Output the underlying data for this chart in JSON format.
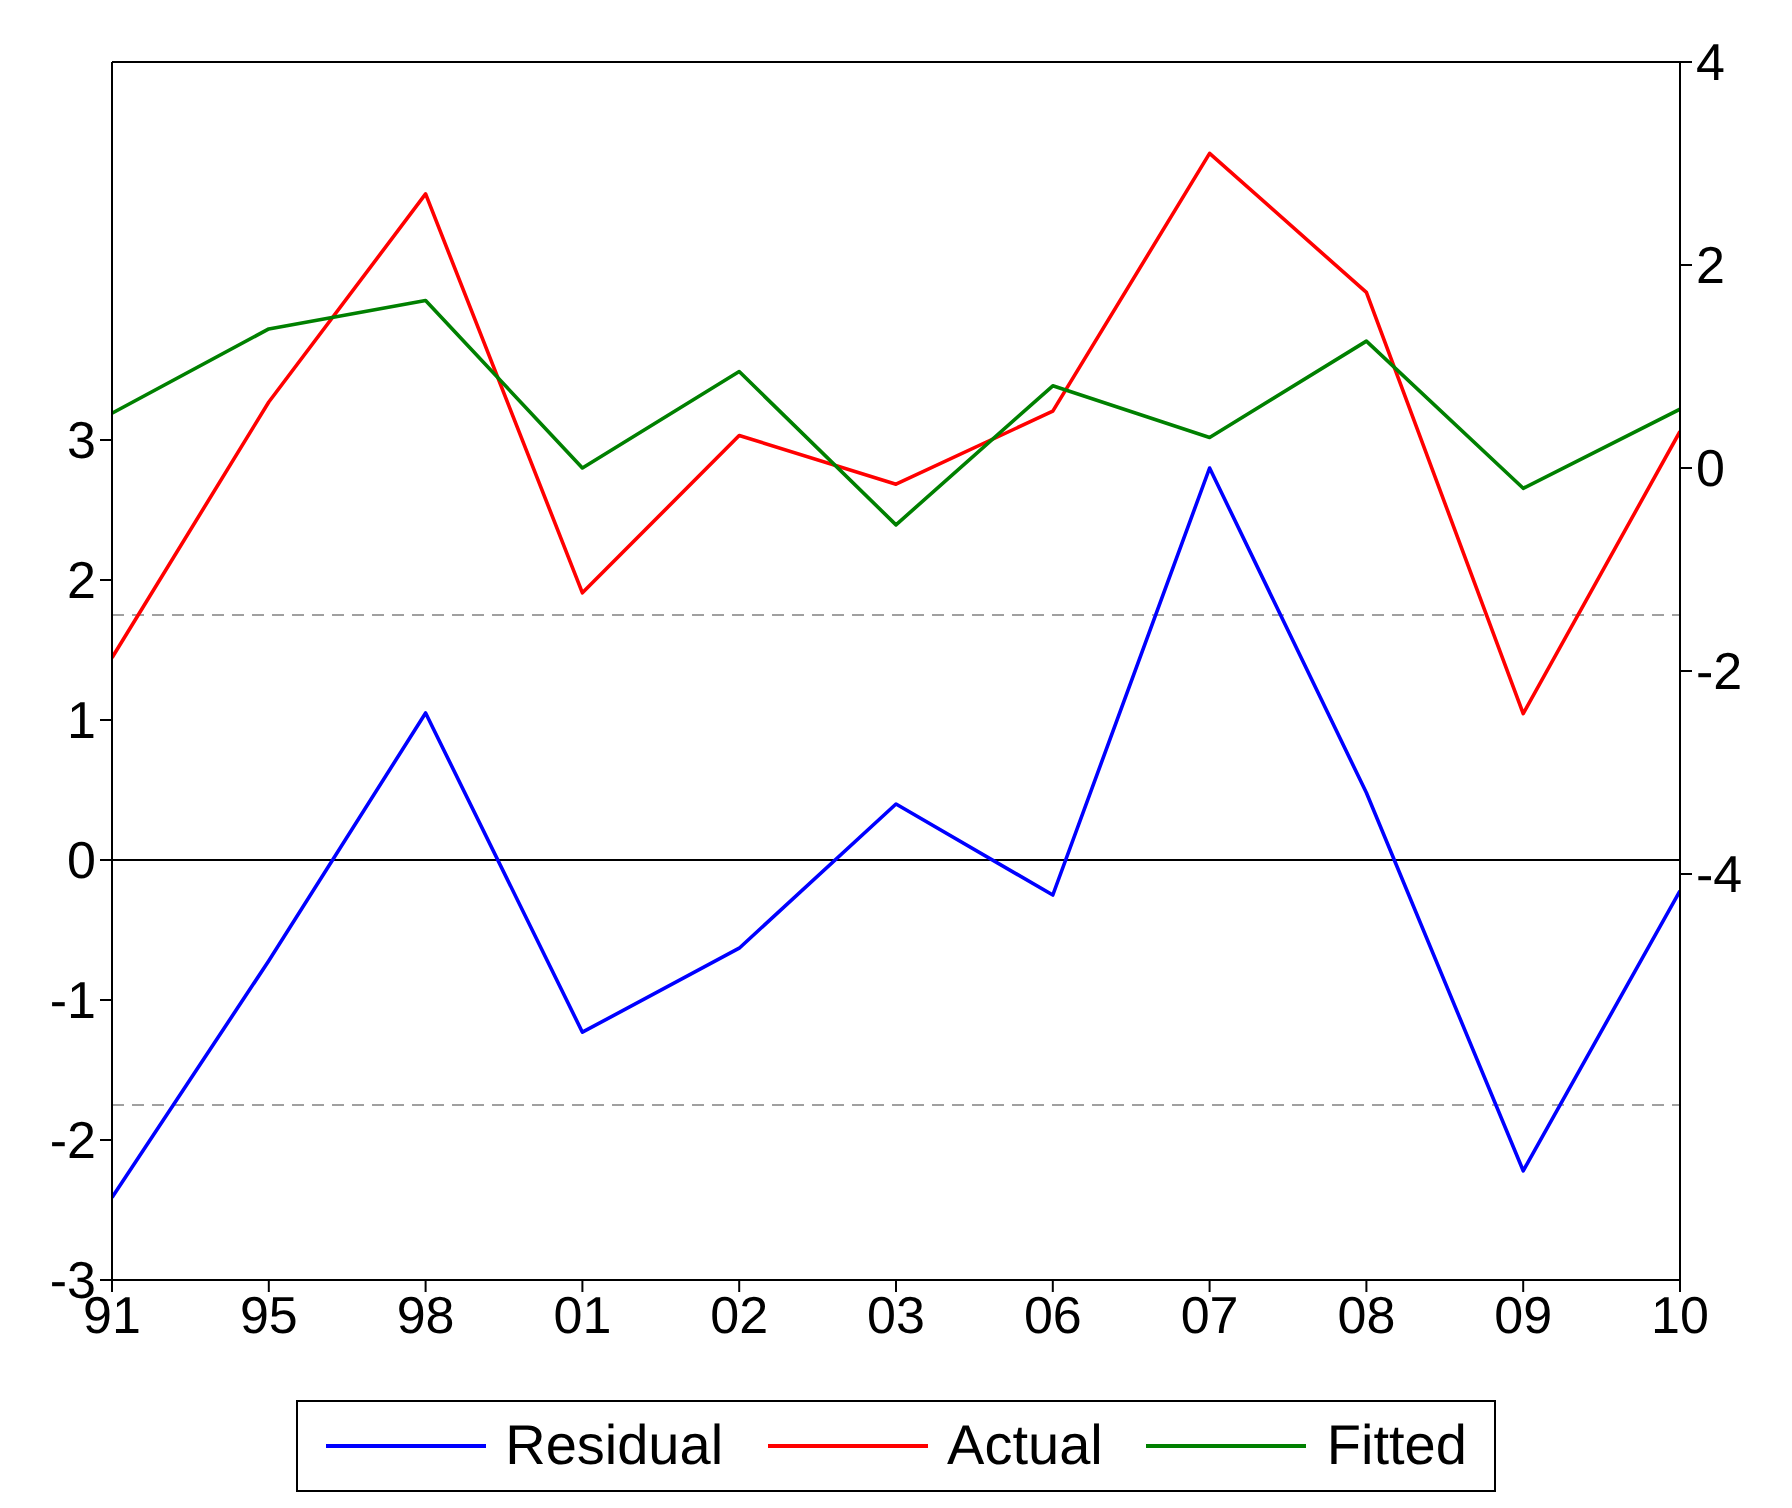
{
  "chart_data": {
    "type": "line",
    "categories": [
      "91",
      "95",
      "98",
      "01",
      "02",
      "03",
      "06",
      "07",
      "08",
      "09",
      "10"
    ],
    "series": [
      {
        "name": "Residual",
        "color": "#0000ff",
        "axis": "y",
        "values": [
          -2.41,
          -0.72,
          1.05,
          -1.23,
          -0.63,
          0.4,
          -0.25,
          2.8,
          0.48,
          -2.22,
          -0.22
        ]
      },
      {
        "name": "Actual",
        "color": "#ff0000",
        "axis": "y2",
        "values": [
          -1.87,
          0.65,
          2.7,
          -1.23,
          0.32,
          -0.16,
          0.56,
          3.1,
          1.73,
          -2.42,
          0.36
        ]
      },
      {
        "name": "Fitted",
        "color": "#008000",
        "axis": "y2",
        "values": [
          0.54,
          1.37,
          1.65,
          0.0,
          0.95,
          -0.56,
          0.81,
          0.3,
          1.25,
          -0.2,
          0.58
        ]
      }
    ],
    "ylim": [
      -3,
      5.7
    ],
    "yticks": [
      -3,
      -2,
      -1,
      0,
      1,
      2,
      3
    ],
    "y2lim": [
      -8,
      4
    ],
    "y2ticks": [
      -4,
      -2,
      0,
      2,
      4
    ],
    "ref_lines": [
      {
        "axis": "y",
        "value": 0,
        "color": "#000000",
        "line_style": "solid"
      },
      {
        "axis": "y",
        "value": 1.75,
        "color": "#a0a0a0",
        "line_style": "dashed"
      },
      {
        "axis": "y",
        "value": -1.75,
        "color": "#a0a0a0",
        "line_style": "dashed"
      }
    ],
    "grid": false,
    "legend": "bottom",
    "marker": "none",
    "line_style": "solid"
  }
}
